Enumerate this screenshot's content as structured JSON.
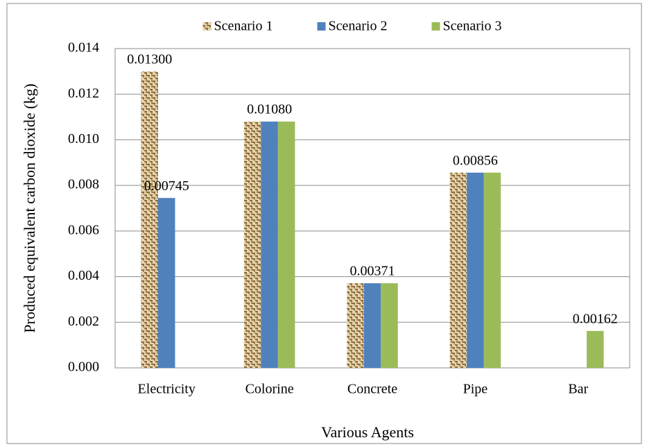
{
  "chart_data": {
    "type": "bar",
    "x_label": "Various Agents",
    "y_label": "Produced equivalent carbon dioxide (kg)",
    "categories": [
      "Electricity",
      "Colorine",
      "Concrete",
      "Pipe",
      "Bar"
    ],
    "series": [
      {
        "name": "Scenario 1",
        "color": "#b8976a",
        "pattern": "woven",
        "values": [
          0.013,
          0.0108,
          0.00371,
          0.00856,
          0
        ],
        "value_labels": [
          "0.01300",
          null,
          null,
          null,
          null
        ]
      },
      {
        "name": "Scenario 2",
        "color": "#4f81bd",
        "values": [
          0.00745,
          0.0108,
          0.00371,
          0.00856,
          0
        ],
        "value_labels": [
          "0.00745",
          "0.01080",
          "0.00371",
          "0.00856",
          null
        ]
      },
      {
        "name": "Scenario 3",
        "color": "#9bbb59",
        "values": [
          0,
          0.0108,
          0.00371,
          0.00856,
          0.00162
        ],
        "value_labels": [
          null,
          null,
          null,
          null,
          "0.00162"
        ]
      }
    ],
    "ylim": [
      0,
      0.014
    ],
    "yticks": [
      {
        "value": 0,
        "label": "0.000"
      },
      {
        "value": 0.002,
        "label": "0.002"
      },
      {
        "value": 0.004,
        "label": "0.004"
      },
      {
        "value": 0.006,
        "label": "0.006"
      },
      {
        "value": 0.008,
        "label": "0.008"
      },
      {
        "value": 0.01,
        "label": "0.010"
      },
      {
        "value": 0.012,
        "label": "0.012"
      },
      {
        "value": 0.014,
        "label": "0.014"
      }
    ],
    "grid": true,
    "legend": "top"
  }
}
